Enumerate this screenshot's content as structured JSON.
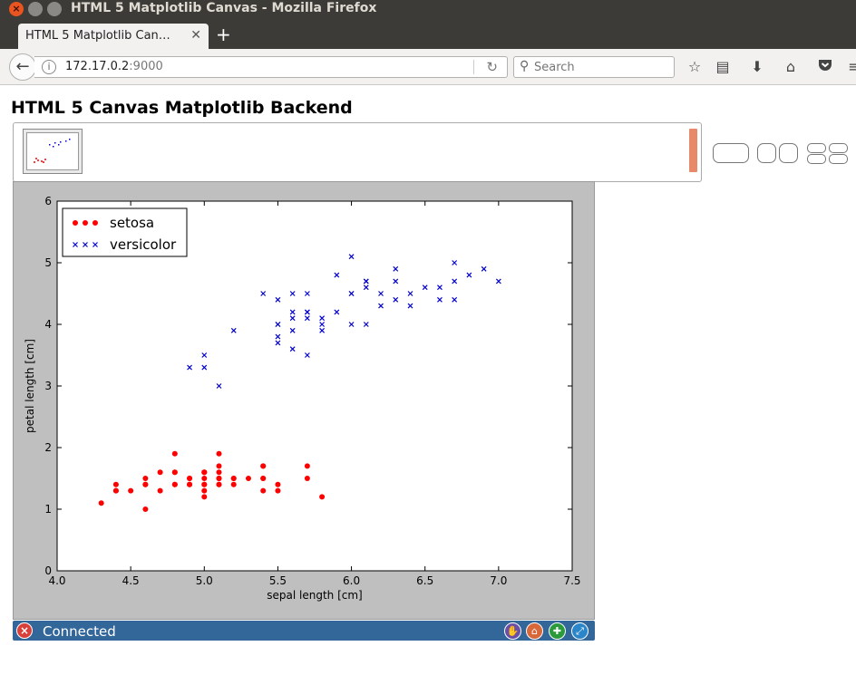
{
  "window": {
    "title": "HTML 5 Matplotlib Canvas - Mozilla Firefox"
  },
  "tabs": [
    {
      "label": "HTML 5 Matplotlib Can…"
    }
  ],
  "navbar": {
    "url_host": "172.17.0.2",
    "url_port": ":9000",
    "search_placeholder": "Search"
  },
  "page": {
    "heading": "HTML 5 Canvas Matplotlib Backend",
    "status": "Connected"
  },
  "colors": {
    "setosa": "#ff0000",
    "versicolor": "#0000cc",
    "thumb_scroll": "#e8896a",
    "statusbar": "#336699"
  },
  "chart_data": {
    "type": "scatter",
    "xlabel": "sepal length [cm]",
    "ylabel": "petal length [cm]",
    "xlim": [
      4.0,
      7.5
    ],
    "ylim": [
      0,
      6
    ],
    "xticks": [
      "4.0",
      "4.5",
      "5.0",
      "5.5",
      "6.0",
      "6.5",
      "7.0",
      "7.5"
    ],
    "yticks": [
      "0",
      "1",
      "2",
      "3",
      "4",
      "5",
      "6"
    ],
    "legend": "top-left",
    "series": [
      {
        "name": "setosa",
        "marker": "o",
        "color": "#ff0000",
        "points": [
          [
            5.1,
            1.4
          ],
          [
            4.9,
            1.4
          ],
          [
            4.7,
            1.3
          ],
          [
            4.6,
            1.5
          ],
          [
            5.0,
            1.4
          ],
          [
            5.4,
            1.7
          ],
          [
            4.6,
            1.4
          ],
          [
            5.0,
            1.5
          ],
          [
            4.4,
            1.4
          ],
          [
            4.9,
            1.5
          ],
          [
            5.4,
            1.5
          ],
          [
            4.8,
            1.6
          ],
          [
            4.8,
            1.4
          ],
          [
            4.3,
            1.1
          ],
          [
            5.8,
            1.2
          ],
          [
            5.7,
            1.5
          ],
          [
            5.4,
            1.3
          ],
          [
            5.1,
            1.4
          ],
          [
            5.7,
            1.7
          ],
          [
            5.1,
            1.5
          ],
          [
            5.4,
            1.7
          ],
          [
            5.1,
            1.5
          ],
          [
            4.6,
            1.0
          ],
          [
            5.1,
            1.7
          ],
          [
            4.8,
            1.9
          ],
          [
            5.0,
            1.6
          ],
          [
            5.0,
            1.6
          ],
          [
            5.2,
            1.5
          ],
          [
            5.2,
            1.4
          ],
          [
            4.7,
            1.6
          ],
          [
            4.8,
            1.6
          ],
          [
            5.4,
            1.5
          ],
          [
            5.2,
            1.5
          ],
          [
            5.5,
            1.4
          ],
          [
            4.9,
            1.5
          ],
          [
            5.0,
            1.2
          ],
          [
            5.5,
            1.3
          ],
          [
            4.9,
            1.4
          ],
          [
            4.4,
            1.3
          ],
          [
            5.1,
            1.5
          ],
          [
            5.0,
            1.3
          ],
          [
            4.5,
            1.3
          ],
          [
            4.4,
            1.3
          ],
          [
            5.0,
            1.6
          ],
          [
            5.1,
            1.9
          ],
          [
            4.8,
            1.4
          ],
          [
            5.1,
            1.6
          ],
          [
            4.6,
            1.4
          ],
          [
            5.3,
            1.5
          ],
          [
            5.0,
            1.4
          ]
        ]
      },
      {
        "name": "versicolor",
        "marker": "x",
        "color": "#0000cc",
        "points": [
          [
            7.0,
            4.7
          ],
          [
            6.4,
            4.5
          ],
          [
            6.9,
            4.9
          ],
          [
            5.5,
            4.0
          ],
          [
            6.5,
            4.6
          ],
          [
            5.7,
            4.5
          ],
          [
            6.3,
            4.7
          ],
          [
            4.9,
            3.3
          ],
          [
            6.6,
            4.6
          ],
          [
            5.2,
            3.9
          ],
          [
            5.0,
            3.5
          ],
          [
            5.9,
            4.2
          ],
          [
            6.0,
            4.0
          ],
          [
            6.1,
            4.7
          ],
          [
            5.6,
            3.6
          ],
          [
            6.7,
            4.4
          ],
          [
            5.6,
            4.5
          ],
          [
            5.8,
            4.1
          ],
          [
            6.2,
            4.5
          ],
          [
            5.6,
            3.9
          ],
          [
            5.9,
            4.8
          ],
          [
            6.1,
            4.0
          ],
          [
            6.3,
            4.9
          ],
          [
            6.1,
            4.7
          ],
          [
            6.4,
            4.3
          ],
          [
            6.6,
            4.4
          ],
          [
            6.8,
            4.8
          ],
          [
            6.7,
            5.0
          ],
          [
            6.0,
            4.5
          ],
          [
            5.7,
            3.5
          ],
          [
            5.5,
            3.8
          ],
          [
            5.5,
            3.7
          ],
          [
            5.8,
            3.9
          ],
          [
            6.0,
            5.1
          ],
          [
            5.4,
            4.5
          ],
          [
            6.0,
            4.5
          ],
          [
            6.7,
            4.7
          ],
          [
            6.3,
            4.4
          ],
          [
            5.6,
            4.1
          ],
          [
            5.5,
            4.0
          ],
          [
            5.5,
            4.4
          ],
          [
            6.1,
            4.6
          ],
          [
            5.8,
            4.0
          ],
          [
            5.0,
            3.3
          ],
          [
            5.6,
            4.2
          ],
          [
            5.7,
            4.2
          ],
          [
            5.7,
            4.2
          ],
          [
            6.2,
            4.3
          ],
          [
            5.1,
            3.0
          ],
          [
            5.7,
            4.1
          ]
        ]
      }
    ]
  }
}
